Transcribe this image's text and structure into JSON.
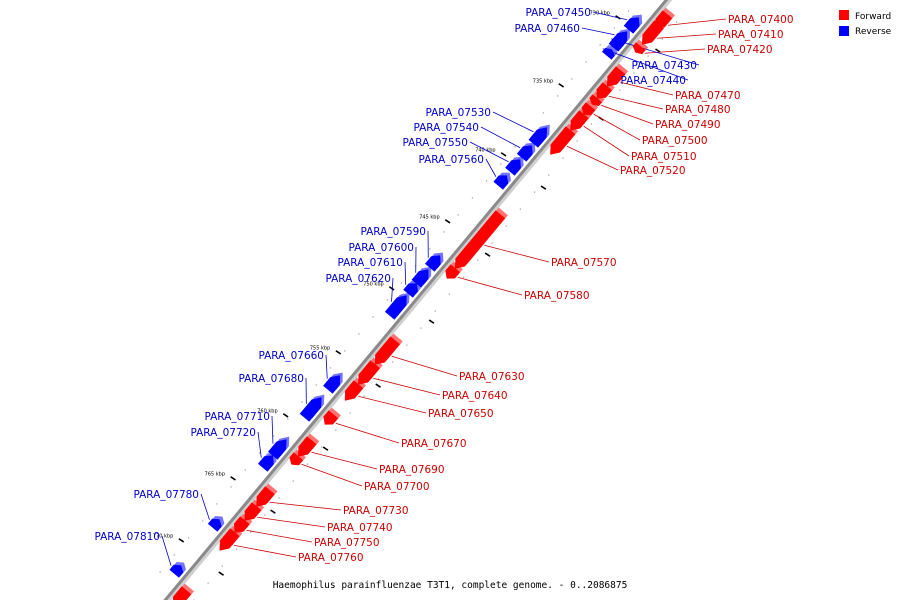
{
  "caption": "Haemophilus parainfluenzae T3T1, complete genome. - 0..2086875",
  "legend": [
    {
      "label": "Forward",
      "color": "#ff0000"
    },
    {
      "label": "Reverse",
      "color": "#0000ff"
    }
  ],
  "colors": {
    "forward": "#ff0000",
    "reverse": "#0000ff",
    "forward_label": "#cc0000",
    "reverse_label": "#0000cc",
    "axis": "#888888"
  },
  "ticks": [
    "730 kbp",
    "735 kbp",
    "740 kbp",
    "745 kbp",
    "750 kbp",
    "755 kbp",
    "760 kbp",
    "765 kbp",
    "770 kbp"
  ],
  "genes": [
    {
      "name": "PARA_07400",
      "strand": "forward"
    },
    {
      "name": "PARA_07410",
      "strand": "forward"
    },
    {
      "name": "PARA_07420",
      "strand": "forward"
    },
    {
      "name": "PARA_07430",
      "strand": "reverse"
    },
    {
      "name": "PARA_07440",
      "strand": "reverse"
    },
    {
      "name": "PARA_07450",
      "strand": "reverse"
    },
    {
      "name": "PARA_07460",
      "strand": "reverse"
    },
    {
      "name": "PARA_07470",
      "strand": "forward"
    },
    {
      "name": "PARA_07480",
      "strand": "forward"
    },
    {
      "name": "PARA_07490",
      "strand": "forward"
    },
    {
      "name": "PARA_07500",
      "strand": "forward"
    },
    {
      "name": "PARA_07510",
      "strand": "forward"
    },
    {
      "name": "PARA_07520",
      "strand": "forward"
    },
    {
      "name": "PARA_07530",
      "strand": "reverse"
    },
    {
      "name": "PARA_07540",
      "strand": "reverse"
    },
    {
      "name": "PARA_07550",
      "strand": "reverse"
    },
    {
      "name": "PARA_07560",
      "strand": "reverse"
    },
    {
      "name": "PARA_07570",
      "strand": "forward"
    },
    {
      "name": "PARA_07580",
      "strand": "forward"
    },
    {
      "name": "PARA_07590",
      "strand": "reverse"
    },
    {
      "name": "PARA_07600",
      "strand": "reverse"
    },
    {
      "name": "PARA_07610",
      "strand": "reverse"
    },
    {
      "name": "PARA_07620",
      "strand": "reverse"
    },
    {
      "name": "PARA_07630",
      "strand": "forward"
    },
    {
      "name": "PARA_07640",
      "strand": "forward"
    },
    {
      "name": "PARA_07650",
      "strand": "forward"
    },
    {
      "name": "PARA_07660",
      "strand": "reverse"
    },
    {
      "name": "PARA_07670",
      "strand": "forward"
    },
    {
      "name": "PARA_07680",
      "strand": "reverse"
    },
    {
      "name": "PARA_07690",
      "strand": "forward"
    },
    {
      "name": "PARA_07700",
      "strand": "forward"
    },
    {
      "name": "PARA_07710",
      "strand": "reverse"
    },
    {
      "name": "PARA_07720",
      "strand": "reverse"
    },
    {
      "name": "PARA_07730",
      "strand": "forward"
    },
    {
      "name": "PARA_07740",
      "strand": "forward"
    },
    {
      "name": "PARA_07750",
      "strand": "forward"
    },
    {
      "name": "PARA_07760",
      "strand": "forward"
    },
    {
      "name": "PARA_07780",
      "strand": "reverse"
    },
    {
      "name": "PARA_07810",
      "strand": "reverse"
    }
  ]
}
